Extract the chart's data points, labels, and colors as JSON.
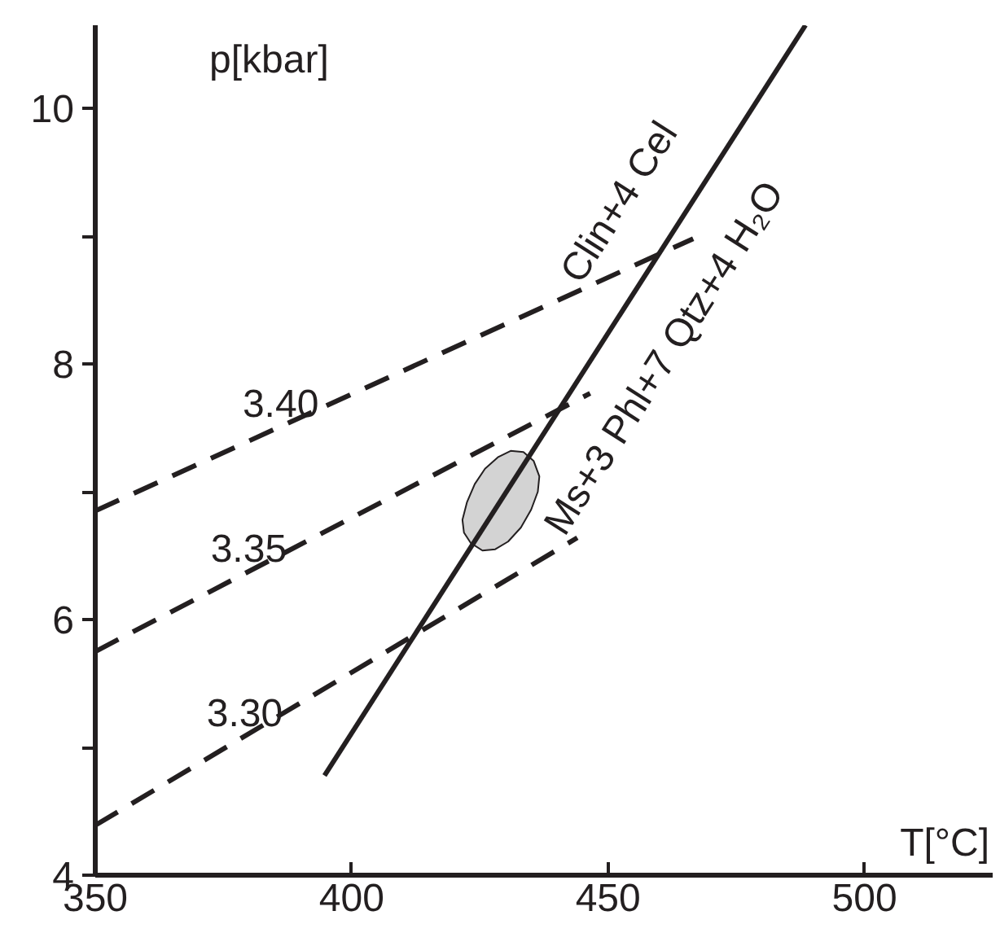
{
  "chart_data": {
    "type": "line",
    "xlabel": "T[°C]",
    "ylabel": "p[kbar]",
    "xlim": [
      350,
      525
    ],
    "ylim": [
      4,
      10.65
    ],
    "xticks": [
      350,
      400,
      450,
      500
    ],
    "yticks": [
      4,
      {
        "value": 5,
        "label": null
      },
      6,
      {
        "value": 7,
        "label": null
      },
      8,
      {
        "value": 9,
        "label": null
      },
      10
    ],
    "grid": false,
    "marker": "none",
    "series": [
      {
        "type": "area",
        "color": "#d3d3d3",
        "x": [
          421.6,
          422.5,
          424,
          426,
          428.5,
          431,
          433.5,
          435.5,
          436.6,
          436.3,
          435,
          433,
          430.5,
          428,
          425.5,
          423.2,
          421.9,
          421.6
        ],
        "values": [
          6.78,
          6.92,
          7.06,
          7.18,
          7.27,
          7.32,
          7.31,
          7.24,
          7.12,
          7.0,
          6.86,
          6.72,
          6.61,
          6.55,
          6.54,
          6.6,
          6.68,
          6.78
        ]
      },
      {
        "color": "#231f20",
        "line_style": "solid",
        "x": [
          394.7,
          488.5
        ],
        "values": [
          4.78,
          10.65
        ]
      },
      {
        "name": "3.40",
        "color": "#231f20",
        "line_style": "dashed",
        "x": [
          350,
          466.6
        ],
        "values": [
          6.85,
          8.98
        ]
      },
      {
        "name": "3.35",
        "color": "#231f20",
        "line_style": "dashed",
        "x": [
          350,
          446.5
        ],
        "values": [
          5.75,
          7.77
        ]
      },
      {
        "name": "3.30",
        "color": "#231f20",
        "line_style": "dashed",
        "x": [
          350,
          444
        ],
        "values": [
          4.39,
          6.64
        ]
      }
    ],
    "annotations": [
      "Clin+4 Cel",
      "Ms+3 Phl+7 Qtz+4 H₂O"
    ]
  }
}
